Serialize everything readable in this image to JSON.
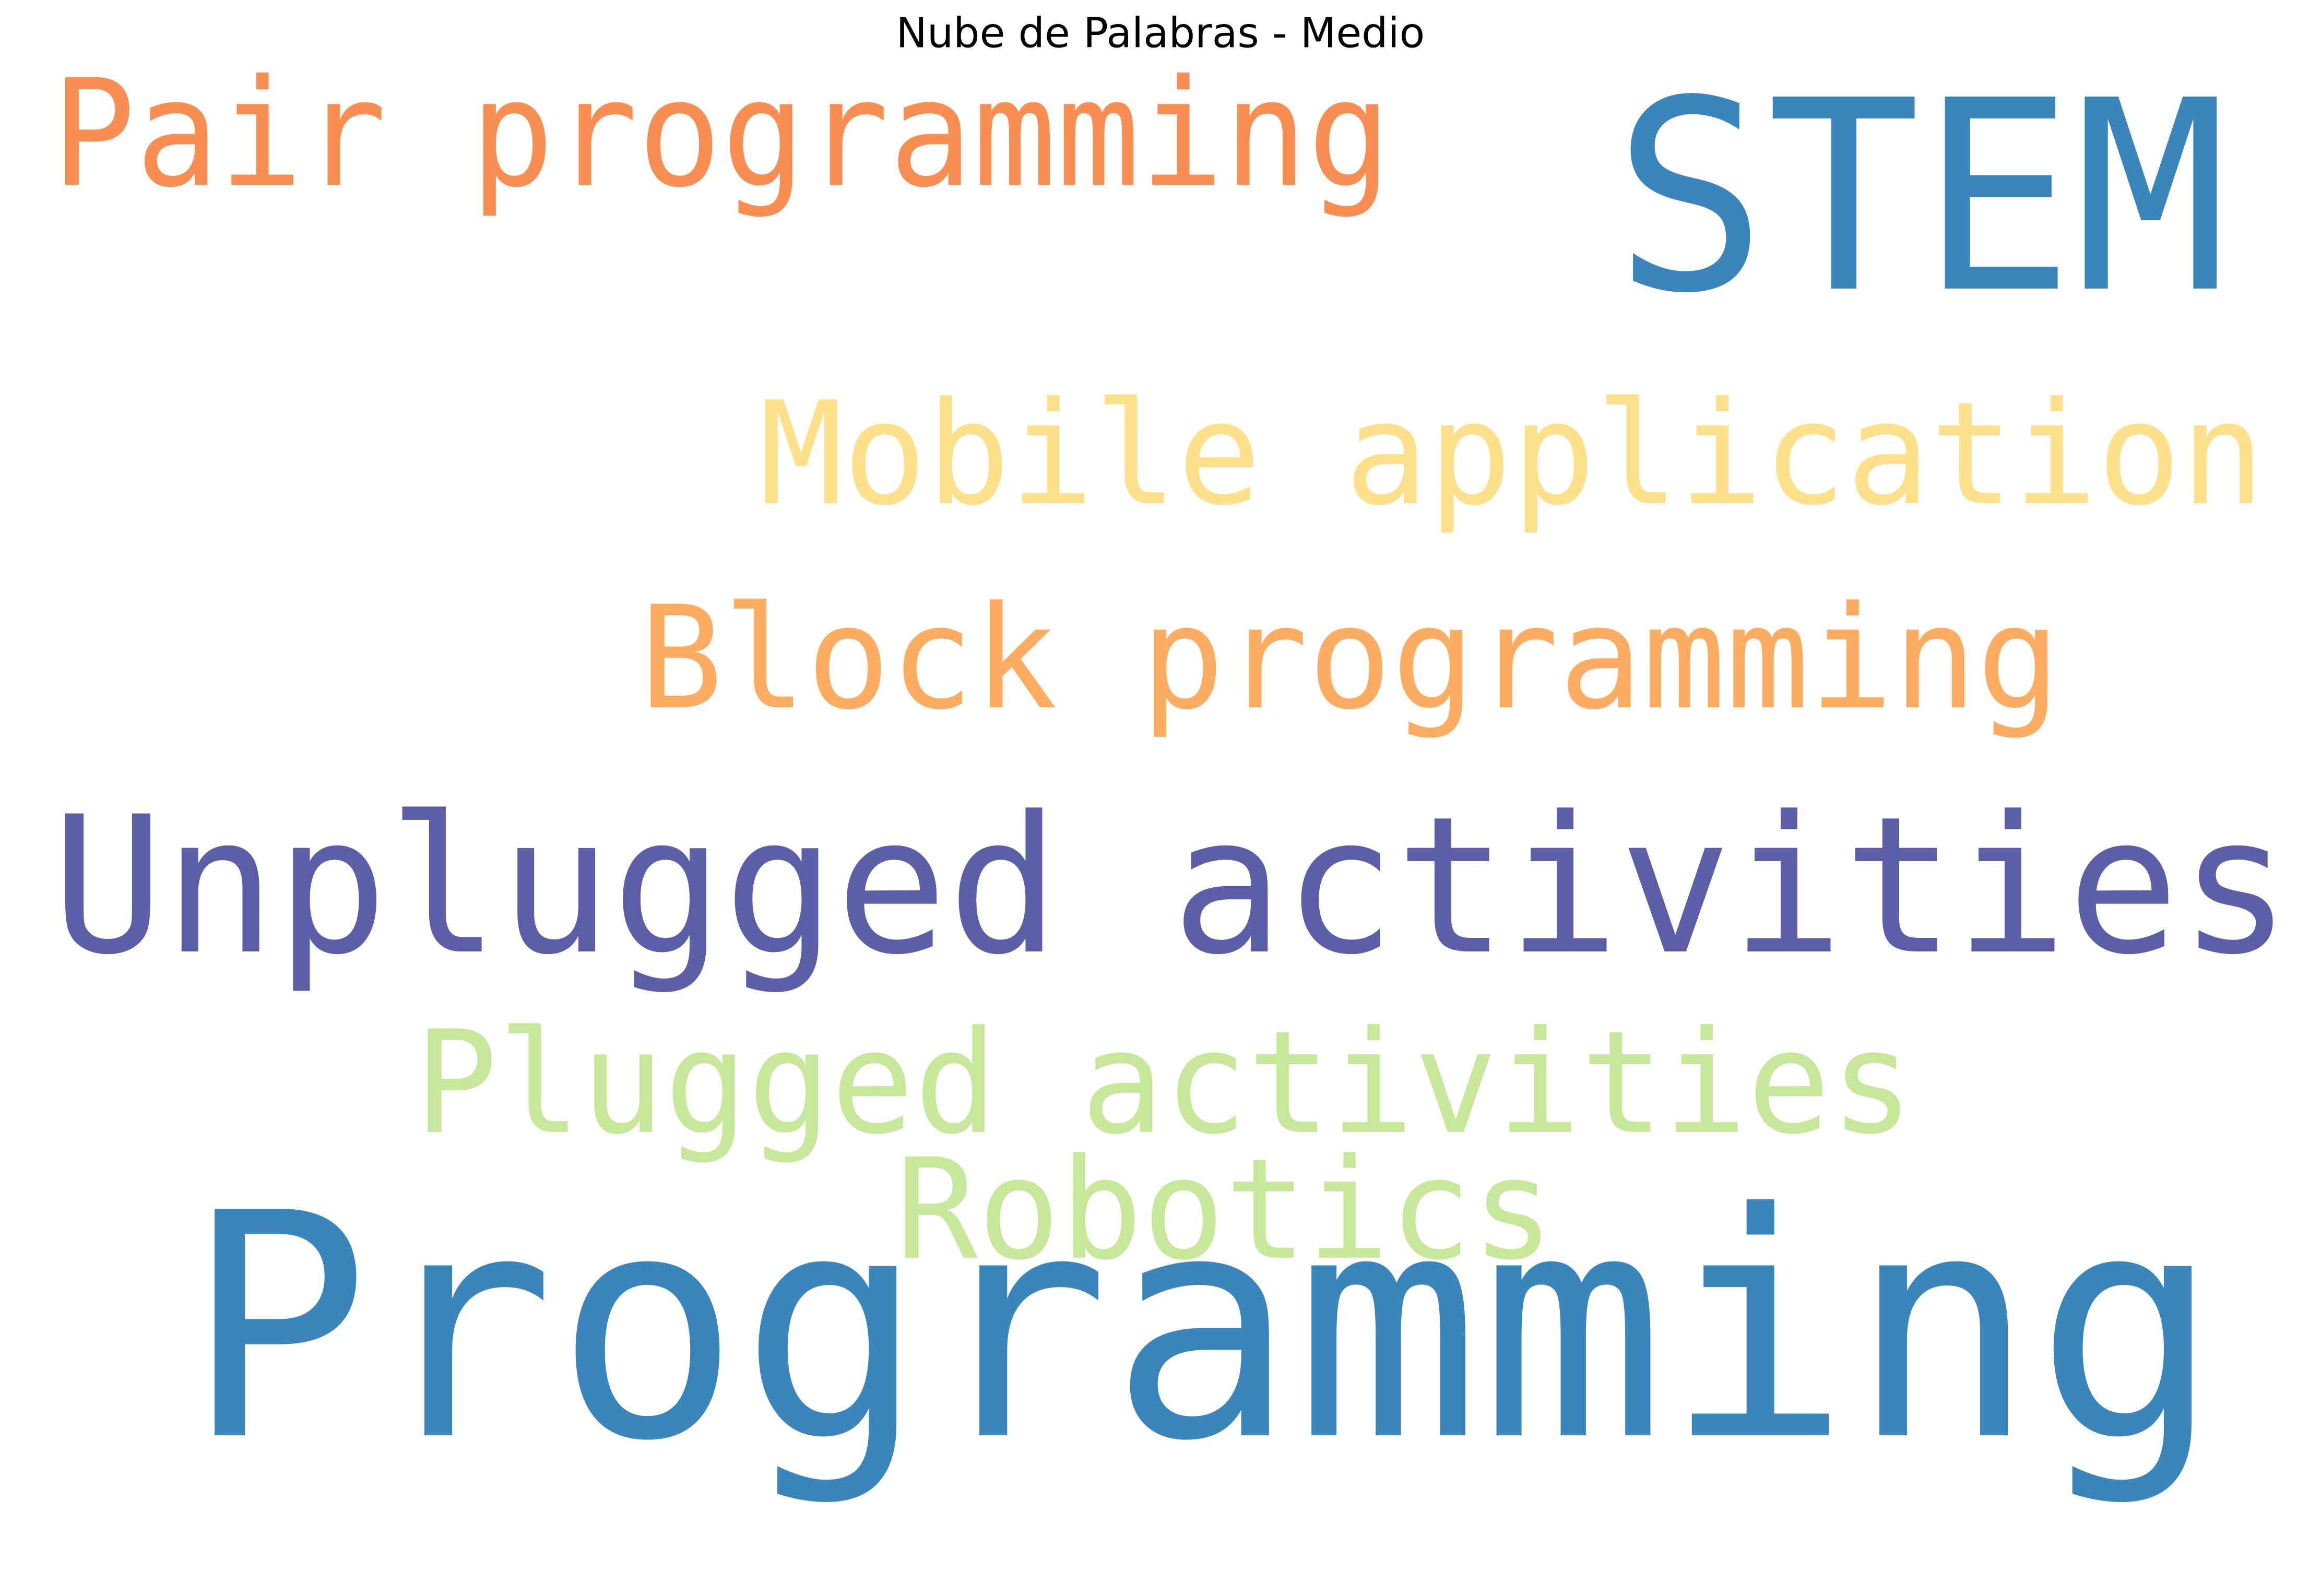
{
  "chart_data": {
    "type": "wordcloud",
    "title": "Nube de Palabras - Medio",
    "words": [
      {
        "text": "Pair programming",
        "color": "#f98e52"
      },
      {
        "text": "STEM",
        "color": "#3b85bd"
      },
      {
        "text": "Mobile application",
        "color": "#fee08b"
      },
      {
        "text": "Block programming",
        "color": "#fdad61"
      },
      {
        "text": "Unplugged activities",
        "color": "#5c5fa8"
      },
      {
        "text": "Plugged activities",
        "color": "#c7e89b"
      },
      {
        "text": "Robotics",
        "color": "#c7e89b"
      },
      {
        "text": "Programming",
        "color": "#3b85bd"
      }
    ]
  }
}
